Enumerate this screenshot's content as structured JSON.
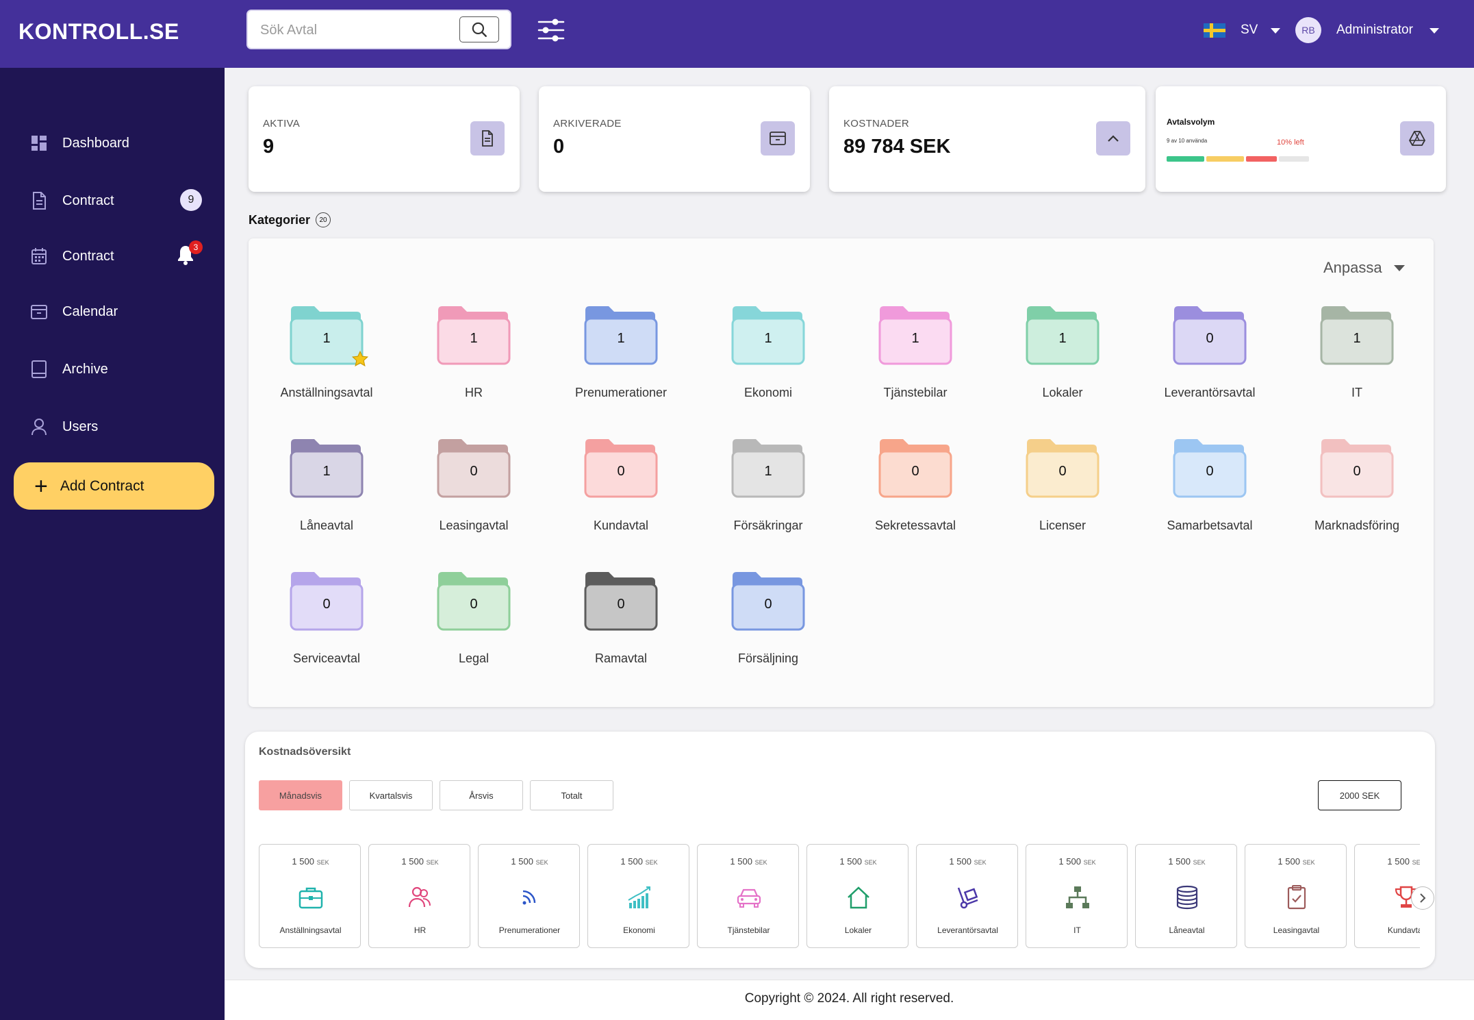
{
  "brand": {
    "name": "KONTROLL.SE"
  },
  "search": {
    "placeholder": "Sök Avtal"
  },
  "header": {
    "language": "SV",
    "avatar_initials": "RB",
    "user_name": "Administrator"
  },
  "sidebar": {
    "items": [
      {
        "label": "Dashboard",
        "icon": "dashboard-icon"
      },
      {
        "label": "Contract",
        "icon": "document-icon",
        "badge": "9"
      },
      {
        "label": "Contract",
        "icon": "calendar-icon",
        "notification": "3"
      },
      {
        "label": "Calendar",
        "icon": "archive-box-icon"
      },
      {
        "label": "Archive",
        "icon": "book-icon"
      },
      {
        "label": "Users",
        "icon": "user-icon"
      }
    ],
    "add_button": "Add Contract"
  },
  "stats": {
    "active": {
      "label": "AKTIVA",
      "value": "9"
    },
    "archived": {
      "label": "ARKIVERADE",
      "value": "0"
    },
    "costs": {
      "label": "KOSTNADER",
      "value": "89 784 SEK"
    },
    "volume": {
      "title": "Avtalsvolym",
      "used": "9 av 10 använda",
      "left": "10% left",
      "used_fraction": 0.9
    }
  },
  "categories": {
    "title": "Kategorier",
    "count": "20",
    "customize": "Anpassa",
    "items": [
      {
        "name": "Anställningsavtal",
        "count": "1",
        "color": "#7fd3cf",
        "fill": "#c9eeec",
        "favorite": true
      },
      {
        "name": "HR",
        "count": "1",
        "color": "#f09ab8",
        "fill": "#fbdbe6"
      },
      {
        "name": "Prenumerationer",
        "count": "1",
        "color": "#7897e0",
        "fill": "#cfdcf6"
      },
      {
        "name": "Ekonomi",
        "count": "1",
        "color": "#86d6d9",
        "fill": "#cff0f0"
      },
      {
        "name": "Tjänstebilar",
        "count": "1",
        "color": "#f09adb",
        "fill": "#fbdbf2"
      },
      {
        "name": "Lokaler",
        "count": "1",
        "color": "#7fcfa8",
        "fill": "#cdeedd"
      },
      {
        "name": "Leverantörsavtal",
        "count": "0",
        "color": "#9b8ede",
        "fill": "#dcd8f5"
      },
      {
        "name": "IT",
        "count": "1",
        "color": "#a6b5a5",
        "fill": "#dce3dc"
      },
      {
        "name": "Låneavtal",
        "count": "1",
        "color": "#8e84b0",
        "fill": "#d9d6e6"
      },
      {
        "name": "Leasingavtal",
        "count": "0",
        "color": "#c3a0a0",
        "fill": "#ecdcdc"
      },
      {
        "name": "Kundavtal",
        "count": "0",
        "color": "#f4a0a0",
        "fill": "#fcdada"
      },
      {
        "name": "Försäkringar",
        "count": "1",
        "color": "#b8b8b8",
        "fill": "#e4e4e4"
      },
      {
        "name": "Sekretessavtal",
        "count": "0",
        "color": "#f7a58a",
        "fill": "#fcdcd0"
      },
      {
        "name": "Licenser",
        "count": "0",
        "color": "#f5cf8a",
        "fill": "#fbeccf"
      },
      {
        "name": "Samarbetsavtal",
        "count": "0",
        "color": "#9cc6f2",
        "fill": "#d8e8fa"
      },
      {
        "name": "Marknadsföring",
        "count": "0",
        "color": "#f2c0c0",
        "fill": "#f9e4e4"
      },
      {
        "name": "Serviceavtal",
        "count": "0",
        "color": "#b5a5ea",
        "fill": "#e2dcf8"
      },
      {
        "name": "Legal",
        "count": "0",
        "color": "#8fcf9a",
        "fill": "#d6eeda"
      },
      {
        "name": "Ramavtal",
        "count": "0",
        "color": "#5c5c5c",
        "fill": "#c6c6c6"
      },
      {
        "name": "Försäljning",
        "count": "0",
        "color": "#7897e0",
        "fill": "#cfdcf6"
      }
    ]
  },
  "cost_overview": {
    "title": "Kostnadsöversikt",
    "tabs": [
      "Månadsvis",
      "Kvartalsvis",
      "Årsvis",
      "Totalt"
    ],
    "active_tab": "Månadsvis",
    "sek_button": "2000 SEK",
    "items": [
      {
        "name": "Anställningsavtal",
        "amount": "1 500",
        "unit": "SEK",
        "icon": "briefcase-icon",
        "color": "#20b3ad"
      },
      {
        "name": "HR",
        "amount": "1 500",
        "unit": "SEK",
        "icon": "users-icon",
        "color": "#e0457b"
      },
      {
        "name": "Prenumerationer",
        "amount": "1 500",
        "unit": "SEK",
        "icon": "rss-icon",
        "color": "#2b55c8"
      },
      {
        "name": "Ekonomi",
        "amount": "1 500",
        "unit": "SEK",
        "icon": "growth-chart-icon",
        "color": "#3fbfc4"
      },
      {
        "name": "Tjänstebilar",
        "amount": "1 500",
        "unit": "SEK",
        "icon": "car-icon",
        "color": "#e472c8"
      },
      {
        "name": "Lokaler",
        "amount": "1 500",
        "unit": "SEK",
        "icon": "home-icon",
        "color": "#1f9e6a"
      },
      {
        "name": "Leverantörsavtal",
        "amount": "1 500",
        "unit": "SEK",
        "icon": "hand-truck-icon",
        "color": "#4b37a8"
      },
      {
        "name": "IT",
        "amount": "1 500",
        "unit": "SEK",
        "icon": "network-icon",
        "color": "#5b7a5a"
      },
      {
        "name": "Låneavtal",
        "amount": "1 500",
        "unit": "SEK",
        "icon": "coins-icon",
        "color": "#3b3878"
      },
      {
        "name": "Leasingavtal",
        "amount": "1 500",
        "unit": "SEK",
        "icon": "clipboard-check-icon",
        "color": "#9c5a5a"
      },
      {
        "name": "Kundavtal",
        "amount": "1 500",
        "unit": "SEK",
        "icon": "trophy-icon",
        "color": "#e04545"
      }
    ]
  },
  "footer": {
    "copyright": "Copyright © 2024. All right reserved."
  }
}
